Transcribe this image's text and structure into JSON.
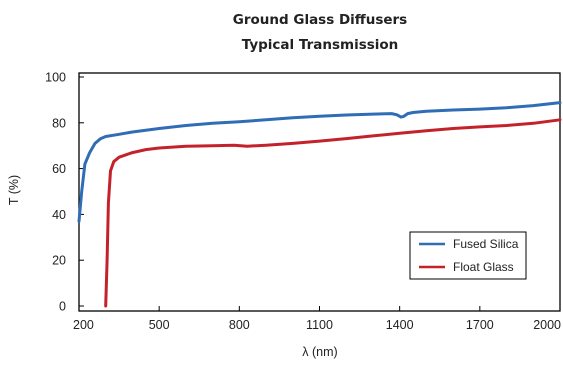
{
  "chart_data": {
    "type": "line",
    "title": "Ground Glass Diffusers",
    "subtitle": "Typical Transmission",
    "xlabel": "λ (nm)",
    "ylabel": "T (%)",
    "xlim": [
      200,
      2000
    ],
    "ylim": [
      0,
      100
    ],
    "x_ticks": [
      200,
      500,
      800,
      1100,
      1400,
      1700,
      2000
    ],
    "y_ticks": [
      0,
      20,
      40,
      60,
      80,
      100
    ],
    "grid": false,
    "legend_position": "bottom-right",
    "series": [
      {
        "name": "Fused Silica",
        "color": "#2f6db5",
        "points": [
          [
            200,
            37
          ],
          [
            210,
            50
          ],
          [
            222,
            62
          ],
          [
            240,
            67
          ],
          [
            260,
            71
          ],
          [
            280,
            73
          ],
          [
            300,
            74
          ],
          [
            350,
            75
          ],
          [
            400,
            76
          ],
          [
            500,
            77.5
          ],
          [
            600,
            78.8
          ],
          [
            700,
            79.8
          ],
          [
            800,
            80.5
          ],
          [
            900,
            81.3
          ],
          [
            1000,
            82.2
          ],
          [
            1100,
            82.9
          ],
          [
            1200,
            83.4
          ],
          [
            1300,
            83.8
          ],
          [
            1370,
            84
          ],
          [
            1390,
            83.5
          ],
          [
            1405,
            82.5
          ],
          [
            1415,
            82.8
          ],
          [
            1430,
            84
          ],
          [
            1450,
            84.5
          ],
          [
            1500,
            85
          ],
          [
            1600,
            85.6
          ],
          [
            1700,
            86
          ],
          [
            1800,
            86.6
          ],
          [
            1900,
            87.5
          ],
          [
            2000,
            88.8
          ]
        ]
      },
      {
        "name": "Float Glass",
        "color": "#c4222a",
        "points": [
          [
            300,
            0
          ],
          [
            305,
            20
          ],
          [
            310,
            45
          ],
          [
            318,
            59
          ],
          [
            330,
            63
          ],
          [
            350,
            65
          ],
          [
            400,
            67
          ],
          [
            450,
            68.3
          ],
          [
            500,
            69
          ],
          [
            600,
            69.8
          ],
          [
            700,
            70
          ],
          [
            780,
            70.2
          ],
          [
            830,
            69.8
          ],
          [
            900,
            70.2
          ],
          [
            1000,
            71
          ],
          [
            1100,
            72
          ],
          [
            1200,
            73.1
          ],
          [
            1300,
            74.3
          ],
          [
            1400,
            75.4
          ],
          [
            1500,
            76.5
          ],
          [
            1600,
            77.5
          ],
          [
            1700,
            78.2
          ],
          [
            1800,
            78.8
          ],
          [
            1900,
            79.8
          ],
          [
            2000,
            81.3
          ]
        ]
      }
    ]
  }
}
